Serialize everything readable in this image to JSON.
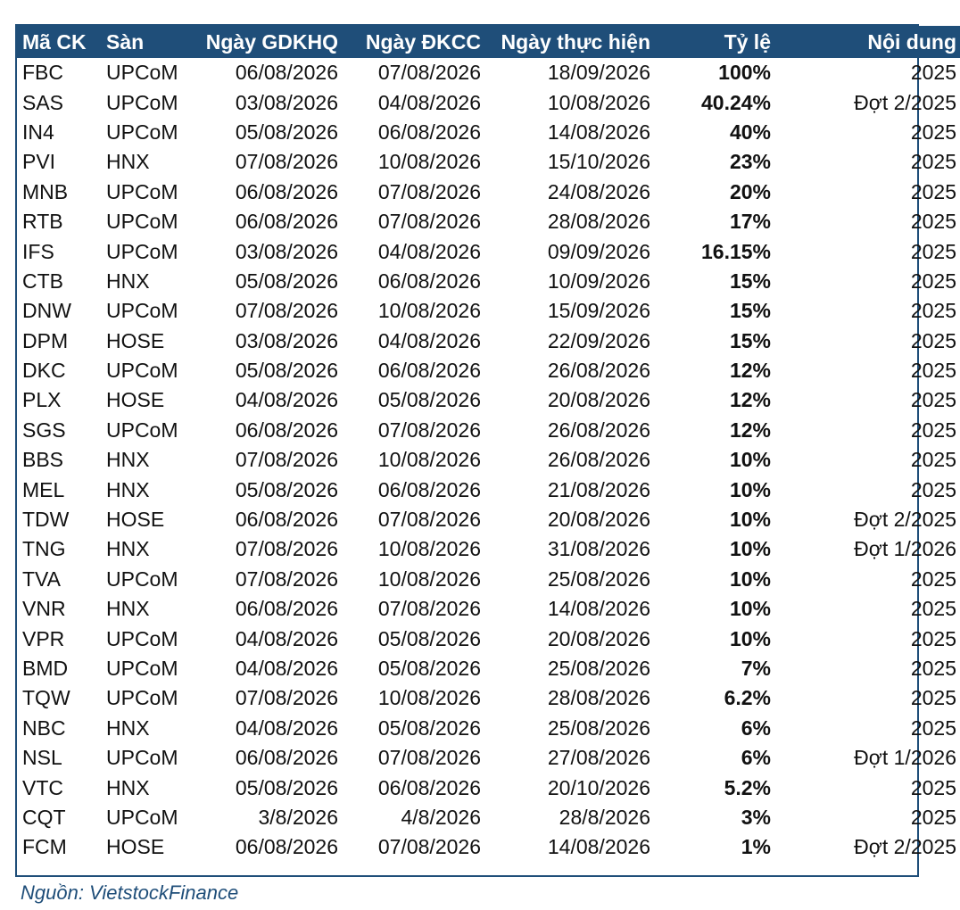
{
  "table": {
    "headers": [
      "Mã CK",
      "Sàn",
      "Ngày GDKHQ",
      "Ngày ĐKCC",
      "Ngày thực hiện",
      "Tỷ lệ",
      "Nội dung"
    ],
    "rows": [
      [
        "FBC",
        "UPCoM",
        "06/08/2026",
        "07/08/2026",
        "18/09/2026",
        "100%",
        "2025"
      ],
      [
        "SAS",
        "UPCoM",
        "03/08/2026",
        "04/08/2026",
        "10/08/2026",
        "40.24%",
        "Đợt 2/2025"
      ],
      [
        "IN4",
        "UPCoM",
        "05/08/2026",
        "06/08/2026",
        "14/08/2026",
        "40%",
        "2025"
      ],
      [
        "PVI",
        "HNX",
        "07/08/2026",
        "10/08/2026",
        "15/10/2026",
        "23%",
        "2025"
      ],
      [
        "MNB",
        "UPCoM",
        "06/08/2026",
        "07/08/2026",
        "24/08/2026",
        "20%",
        "2025"
      ],
      [
        "RTB",
        "UPCoM",
        "06/08/2026",
        "07/08/2026",
        "28/08/2026",
        "17%",
        "2025"
      ],
      [
        "IFS",
        "UPCoM",
        "03/08/2026",
        "04/08/2026",
        "09/09/2026",
        "16.15%",
        "2025"
      ],
      [
        "CTB",
        "HNX",
        "05/08/2026",
        "06/08/2026",
        "10/09/2026",
        "15%",
        "2025"
      ],
      [
        "DNW",
        "UPCoM",
        "07/08/2026",
        "10/08/2026",
        "15/09/2026",
        "15%",
        "2025"
      ],
      [
        "DPM",
        "HOSE",
        "03/08/2026",
        "04/08/2026",
        "22/09/2026",
        "15%",
        "2025"
      ],
      [
        "DKC",
        "UPCoM",
        "05/08/2026",
        "06/08/2026",
        "26/08/2026",
        "12%",
        "2025"
      ],
      [
        "PLX",
        "HOSE",
        "04/08/2026",
        "05/08/2026",
        "20/08/2026",
        "12%",
        "2025"
      ],
      [
        "SGS",
        "UPCoM",
        "06/08/2026",
        "07/08/2026",
        "26/08/2026",
        "12%",
        "2025"
      ],
      [
        "BBS",
        "HNX",
        "07/08/2026",
        "10/08/2026",
        "26/08/2026",
        "10%",
        "2025"
      ],
      [
        "MEL",
        "HNX",
        "05/08/2026",
        "06/08/2026",
        "21/08/2026",
        "10%",
        "2025"
      ],
      [
        "TDW",
        "HOSE",
        "06/08/2026",
        "07/08/2026",
        "20/08/2026",
        "10%",
        "Đợt 2/2025"
      ],
      [
        "TNG",
        "HNX",
        "07/08/2026",
        "10/08/2026",
        "31/08/2026",
        "10%",
        "Đợt 1/2026"
      ],
      [
        "TVA",
        "UPCoM",
        "07/08/2026",
        "10/08/2026",
        "25/08/2026",
        "10%",
        "2025"
      ],
      [
        "VNR",
        "HNX",
        "06/08/2026",
        "07/08/2026",
        "14/08/2026",
        "10%",
        "2025"
      ],
      [
        "VPR",
        "UPCoM",
        "04/08/2026",
        "05/08/2026",
        "20/08/2026",
        "10%",
        "2025"
      ],
      [
        "BMD",
        "UPCoM",
        "04/08/2026",
        "05/08/2026",
        "25/08/2026",
        "7%",
        "2025"
      ],
      [
        "TQW",
        "UPCoM",
        "07/08/2026",
        "10/08/2026",
        "28/08/2026",
        "6.2%",
        "2025"
      ],
      [
        "NBC",
        "HNX",
        "04/08/2026",
        "05/08/2026",
        "25/08/2026",
        "6%",
        "2025"
      ],
      [
        "NSL",
        "UPCoM",
        "06/08/2026",
        "07/08/2026",
        "27/08/2026",
        "6%",
        "Đợt 1/2026"
      ],
      [
        "VTC",
        "HNX",
        "05/08/2026",
        "06/08/2026",
        "20/10/2026",
        "5.2%",
        "2025"
      ],
      [
        "CQT",
        "UPCoM",
        "3/8/2026",
        "4/8/2026",
        "28/8/2026",
        "3%",
        "2025"
      ],
      [
        "FCM",
        "HOSE",
        "06/08/2026",
        "07/08/2026",
        "14/08/2026",
        "1%",
        "Đợt 2/2025"
      ]
    ]
  },
  "source": "Nguồn: VietstockFinance",
  "colors": {
    "header_bg": "#1f4e79",
    "header_text": "#ffffff",
    "source_text": "#1f4e79"
  }
}
